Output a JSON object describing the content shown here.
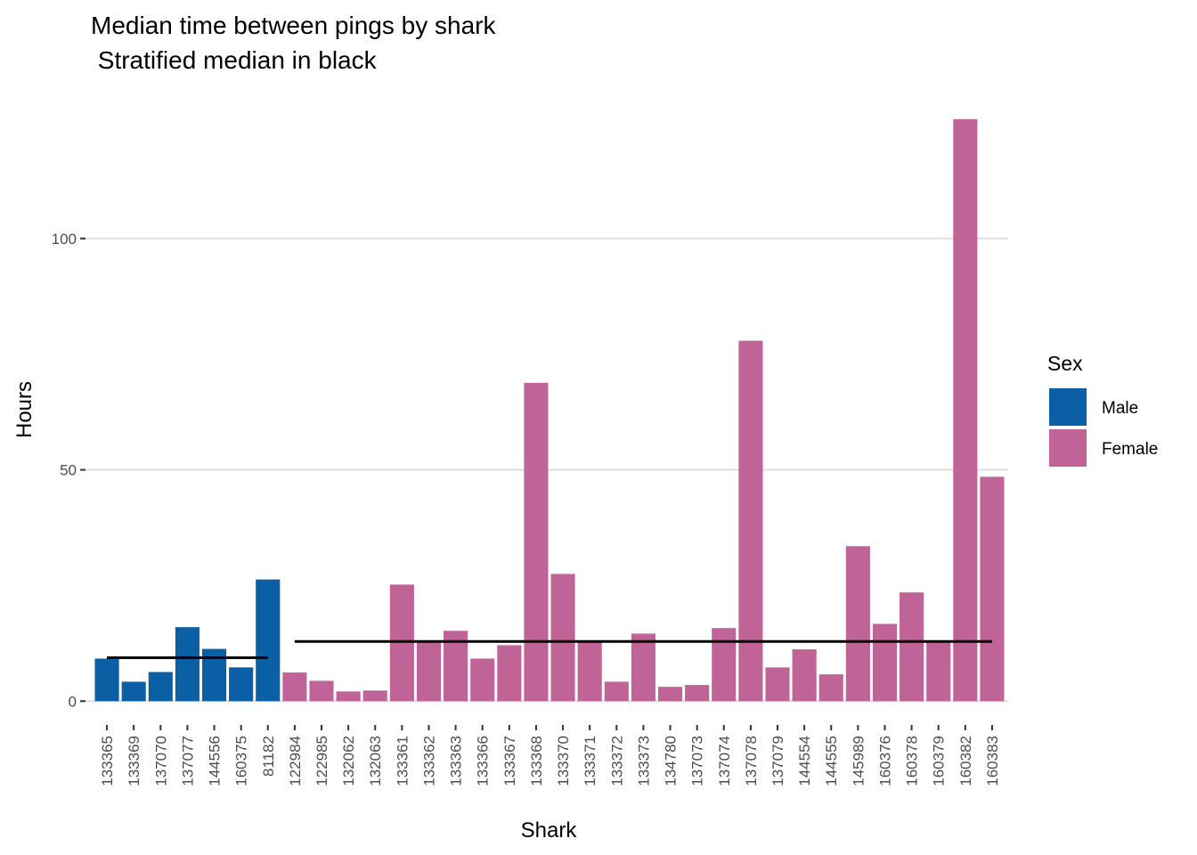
{
  "chart_data": {
    "type": "bar",
    "title": "Median time between pings by shark",
    "subtitle": " Stratified median in black",
    "x_label": "Shark",
    "y_label": "Hours",
    "categories": [
      "133365",
      "133369",
      "137070",
      "137077",
      "144556",
      "160375",
      "81182",
      "122984",
      "122985",
      "132062",
      "132063",
      "133361",
      "133362",
      "133363",
      "133366",
      "133367",
      "133368",
      "133370",
      "133371",
      "133372",
      "133373",
      "134780",
      "137073",
      "137074",
      "137078",
      "137079",
      "144554",
      "144555",
      "145989",
      "160376",
      "160378",
      "160379",
      "160382",
      "160383"
    ],
    "series": [
      {
        "name": "Male",
        "color": "#0b5fa5",
        "median": 9.4,
        "values": [
          9.2,
          4.2,
          6.3,
          16.0,
          11.3,
          7.3,
          26.3,
          null,
          null,
          null,
          null,
          null,
          null,
          null,
          null,
          null,
          null,
          null,
          null,
          null,
          null,
          null,
          null,
          null,
          null,
          null,
          null,
          null,
          null,
          null,
          null,
          null,
          null,
          null
        ]
      },
      {
        "name": "Female",
        "color": "#c06397",
        "median": 12.9,
        "values": [
          null,
          null,
          null,
          null,
          null,
          null,
          null,
          6.2,
          4.4,
          2.1,
          2.3,
          25.2,
          12.9,
          15.2,
          9.2,
          12.1,
          68.8,
          27.5,
          12.9,
          4.2,
          14.6,
          3.1,
          3.5,
          15.8,
          77.9,
          7.3,
          11.2,
          5.8,
          33.5,
          16.7,
          23.5,
          12.9,
          125.8,
          48.5
        ]
      }
    ],
    "legend_title": "Sex",
    "legend": "right",
    "ylim": [
      -6.3,
      132.3
    ],
    "yticks": [
      0,
      50,
      100
    ],
    "grid": true
  }
}
